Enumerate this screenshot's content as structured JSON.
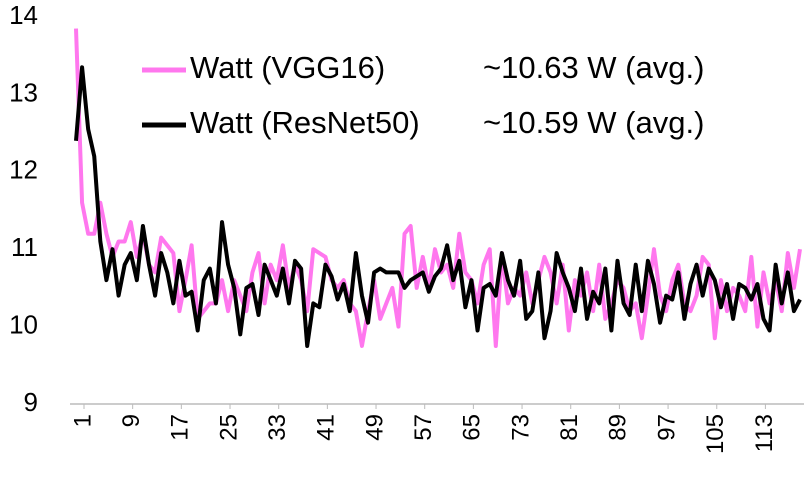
{
  "chart_data": {
    "type": "line",
    "x": [
      1,
      2,
      3,
      4,
      5,
      6,
      7,
      8,
      9,
      10,
      11,
      12,
      13,
      14,
      15,
      16,
      17,
      18,
      19,
      20,
      21,
      22,
      23,
      24,
      25,
      26,
      27,
      28,
      29,
      30,
      31,
      32,
      33,
      34,
      35,
      36,
      37,
      38,
      39,
      40,
      41,
      42,
      43,
      44,
      45,
      46,
      47,
      48,
      49,
      50,
      51,
      52,
      53,
      54,
      55,
      56,
      57,
      58,
      59,
      60,
      61,
      62,
      63,
      64,
      65,
      66,
      67,
      68,
      69,
      70,
      71,
      72,
      73,
      74,
      75,
      76,
      77,
      78,
      79,
      80,
      81,
      82,
      83,
      84,
      85,
      86,
      87,
      88,
      89,
      90,
      91,
      92,
      93,
      94,
      95,
      96,
      97,
      98,
      99,
      100,
      101,
      102,
      103,
      104,
      105,
      106,
      107,
      108,
      109,
      110,
      111,
      112,
      113,
      114,
      115,
      116,
      117,
      118,
      119,
      120
    ],
    "series": [
      {
        "name": "Watt (VGG16)",
        "color": "#ff77ee",
        "values": [
          13.85,
          11.6,
          11.2,
          11.2,
          11.6,
          11.2,
          10.9,
          11.1,
          11.1,
          11.35,
          10.9,
          11.2,
          10.8,
          10.7,
          11.15,
          11.05,
          10.95,
          10.2,
          10.6,
          11.05,
          10.1,
          10.2,
          10.3,
          10.3,
          10.6,
          10.2,
          10.6,
          10.4,
          10.2,
          10.7,
          10.95,
          10.3,
          10.8,
          10.6,
          11.05,
          10.5,
          10.8,
          10.6,
          10.2,
          11.0,
          10.95,
          10.9,
          10.6,
          10.5,
          10.6,
          10.3,
          10.2,
          9.75,
          10.2,
          10.6,
          10.1,
          10.3,
          10.5,
          10.0,
          11.2,
          11.3,
          10.5,
          10.9,
          10.5,
          11.0,
          10.7,
          10.8,
          10.5,
          11.2,
          10.7,
          10.6,
          10.3,
          10.8,
          11.0,
          9.75,
          10.95,
          10.3,
          10.5,
          10.4,
          10.7,
          10.3,
          10.6,
          10.9,
          10.7,
          10.3,
          10.8,
          9.95,
          10.6,
          10.4,
          10.7,
          10.2,
          10.8,
          10.1,
          10.3,
          10.6,
          10.5,
          10.2,
          10.3,
          9.85,
          10.4,
          11.0,
          10.4,
          10.2,
          10.6,
          10.8,
          10.3,
          10.2,
          10.4,
          10.9,
          10.8,
          9.85,
          10.6,
          10.2,
          10.5,
          10.4,
          10.2,
          10.9,
          10.0,
          10.7,
          10.3,
          10.6,
          10.2,
          10.95,
          10.5,
          11.0
        ]
      },
      {
        "name": "Watt (ResNet50)",
        "color": "#000000",
        "values": [
          12.4,
          13.35,
          12.55,
          12.2,
          11.1,
          10.6,
          11.0,
          10.4,
          10.8,
          10.95,
          10.6,
          11.3,
          10.8,
          10.4,
          10.95,
          10.7,
          10.3,
          10.85,
          10.4,
          10.45,
          9.95,
          10.6,
          10.75,
          10.3,
          11.35,
          10.8,
          10.5,
          9.9,
          10.5,
          10.55,
          10.15,
          10.8,
          10.6,
          10.4,
          10.75,
          10.3,
          10.85,
          10.75,
          9.75,
          10.3,
          10.25,
          10.8,
          10.65,
          10.35,
          10.55,
          10.2,
          10.95,
          10.4,
          10.05,
          10.7,
          10.75,
          10.7,
          10.7,
          10.7,
          10.5,
          10.6,
          10.65,
          10.7,
          10.45,
          10.65,
          10.75,
          11.05,
          10.6,
          10.85,
          10.25,
          10.6,
          9.95,
          10.5,
          10.55,
          10.4,
          10.95,
          10.6,
          10.4,
          10.85,
          10.1,
          10.2,
          10.7,
          9.85,
          10.2,
          10.95,
          10.7,
          10.5,
          10.2,
          10.75,
          10.1,
          10.45,
          10.3,
          10.75,
          9.95,
          10.85,
          10.3,
          10.15,
          10.8,
          10.2,
          10.85,
          10.55,
          10.05,
          10.4,
          10.35,
          10.7,
          10.1,
          10.55,
          10.8,
          10.4,
          10.75,
          10.6,
          10.25,
          10.55,
          10.1,
          10.55,
          10.5,
          10.35,
          10.55,
          10.1,
          9.95,
          10.8,
          10.3,
          10.7,
          10.2,
          10.35
        ]
      }
    ],
    "annotations": [
      "~10.63 W (avg.)",
      "~10.59 W (avg.)"
    ],
    "xlim": [
      1,
      120
    ],
    "xticks": [
      1,
      9,
      17,
      25,
      33,
      41,
      49,
      57,
      65,
      73,
      81,
      89,
      97,
      105,
      113
    ],
    "ylim": [
      9,
      14
    ],
    "yticks": [
      9,
      10,
      11,
      12,
      13,
      14
    ],
    "grid": false
  }
}
